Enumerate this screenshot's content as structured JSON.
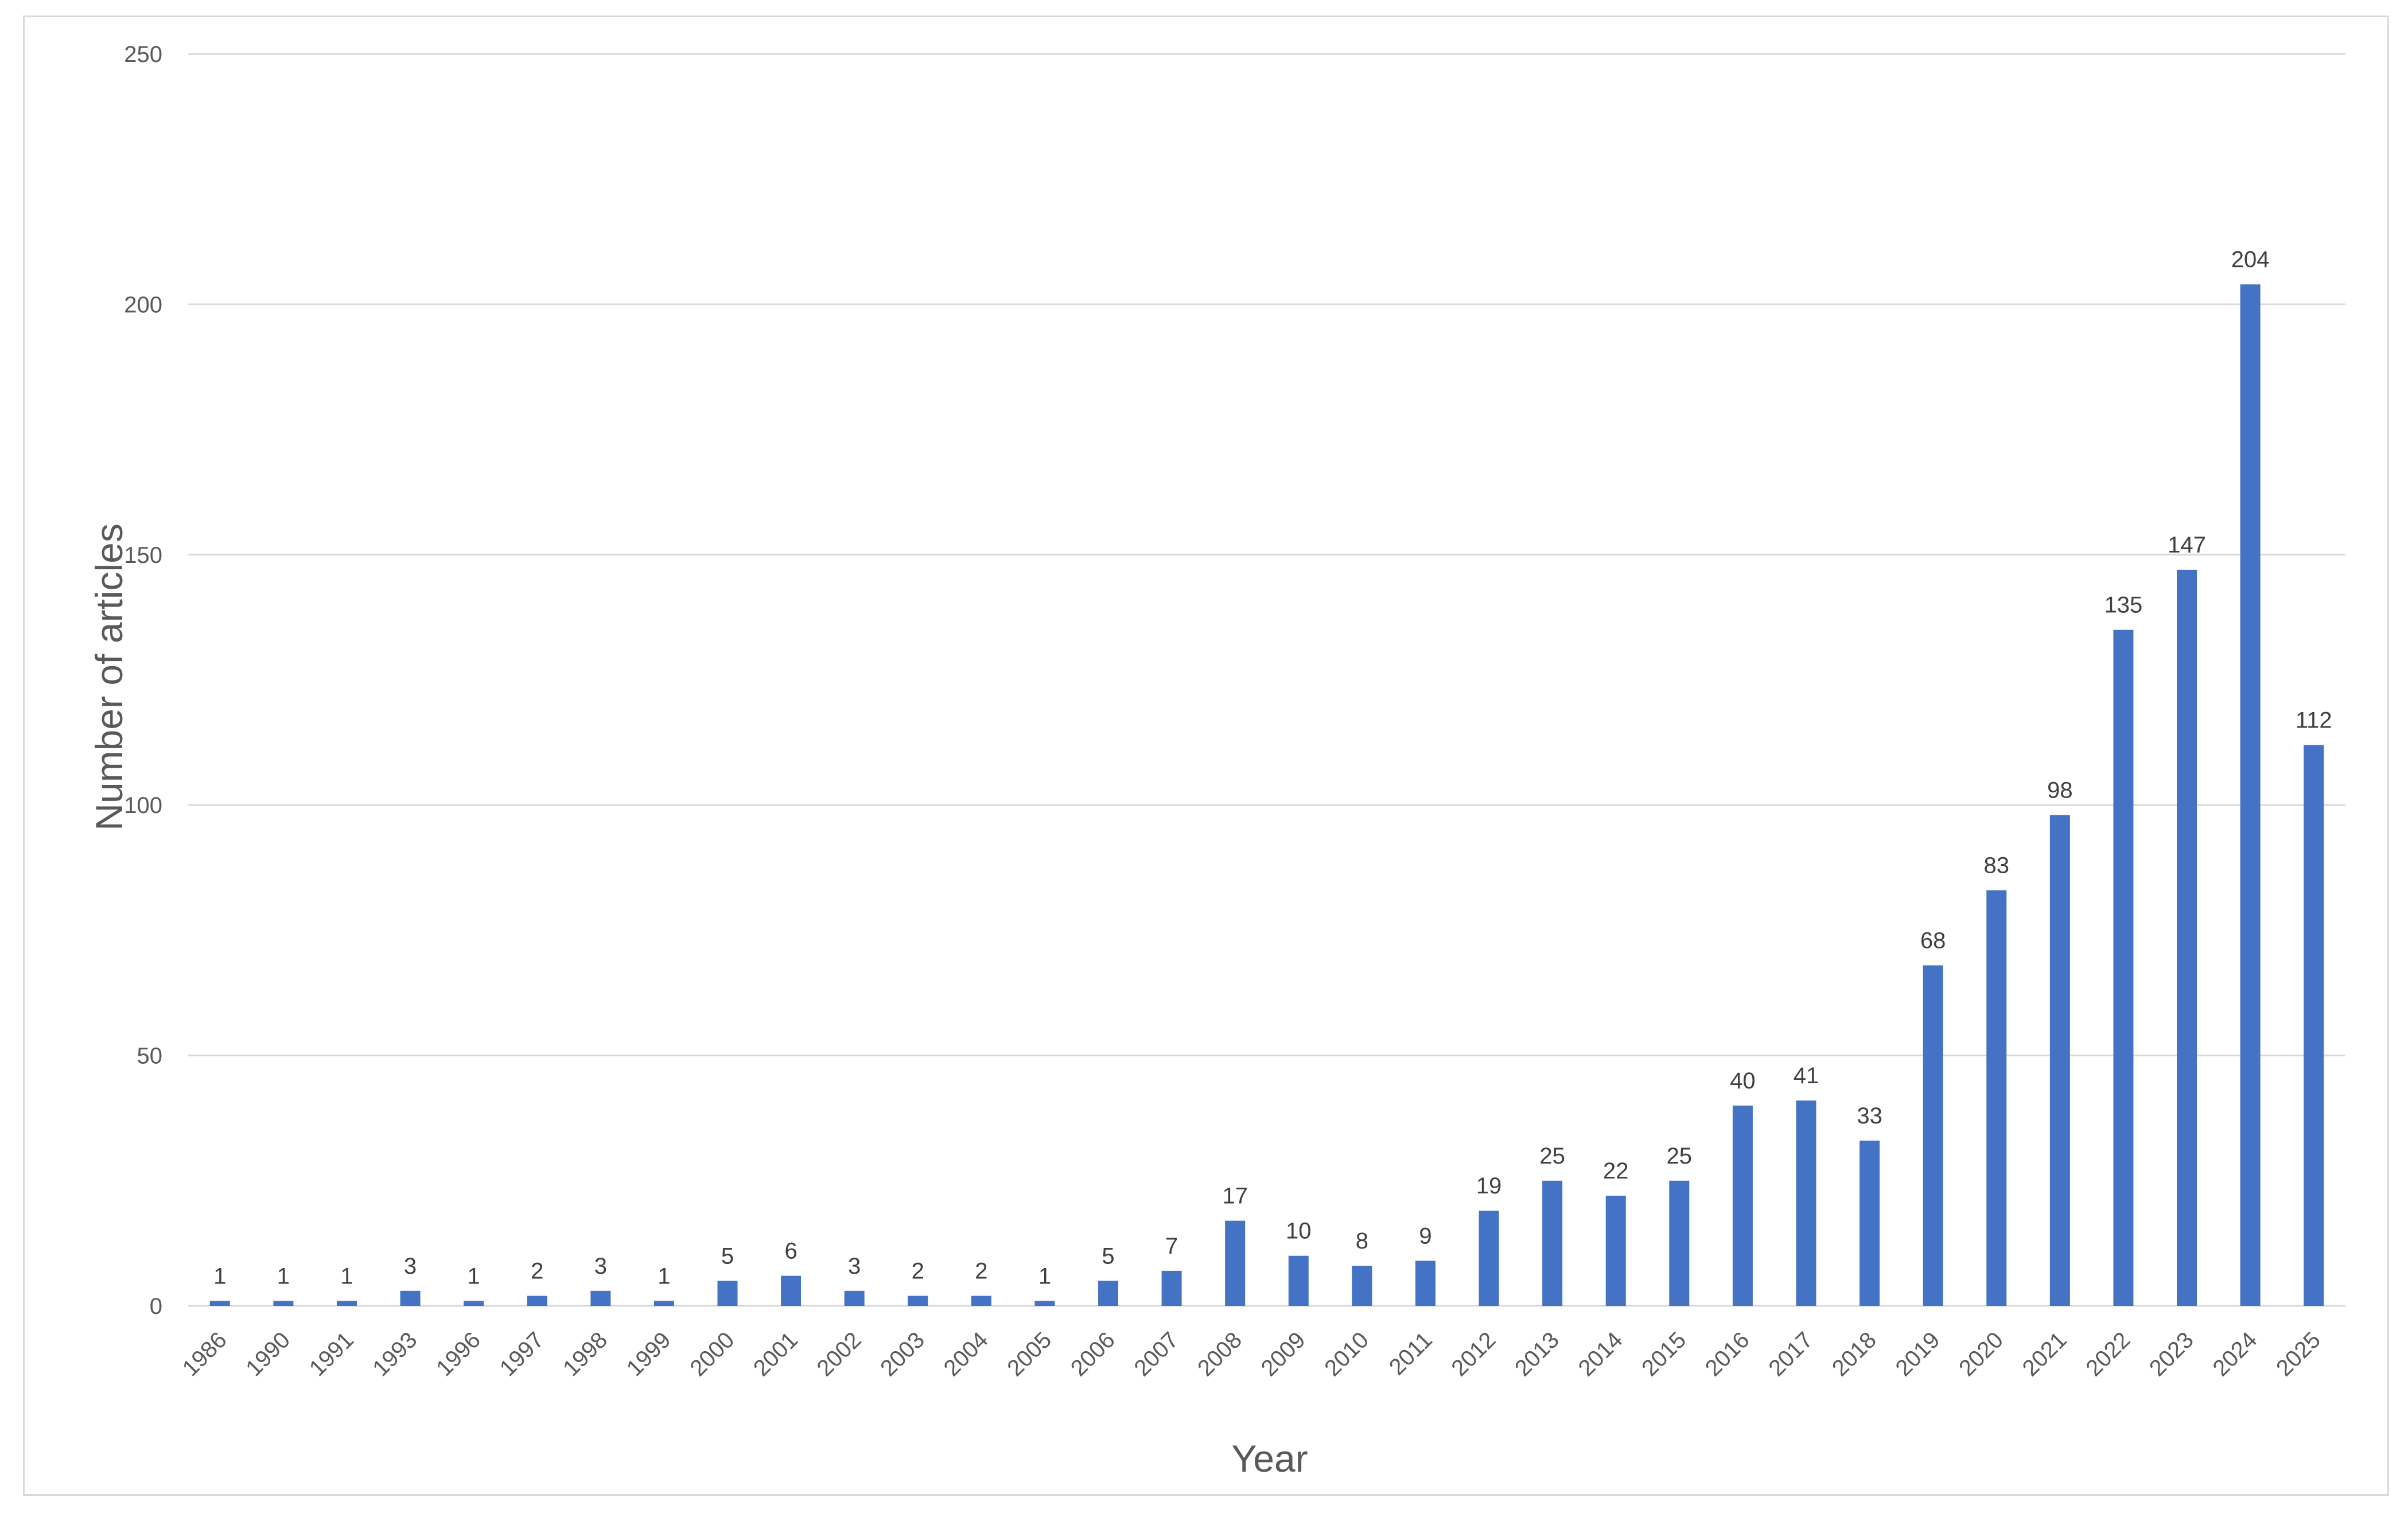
{
  "chart_data": {
    "type": "bar",
    "title": "",
    "xlabel": "Year",
    "ylabel": "Number of articles",
    "ylim": [
      0,
      250
    ],
    "yticks": [
      0,
      50,
      100,
      150,
      200,
      250
    ],
    "grid": true,
    "legend": "none",
    "bar_color": "#4472c4",
    "categories": [
      "1986",
      "1990",
      "1991",
      "1993",
      "1996",
      "1997",
      "1998",
      "1999",
      "2000",
      "2001",
      "2002",
      "2003",
      "2004",
      "2005",
      "2006",
      "2007",
      "2008",
      "2009",
      "2010",
      "2011",
      "2012",
      "2013",
      "2014",
      "2015",
      "2016",
      "2017",
      "2018",
      "2019",
      "2020",
      "2021",
      "2022",
      "2023",
      "2024",
      "2025"
    ],
    "values": [
      1,
      1,
      1,
      3,
      1,
      2,
      3,
      1,
      5,
      6,
      3,
      2,
      2,
      1,
      5,
      7,
      17,
      10,
      8,
      9,
      19,
      25,
      22,
      25,
      40,
      41,
      33,
      68,
      83,
      98,
      135,
      147,
      204,
      112
    ]
  }
}
